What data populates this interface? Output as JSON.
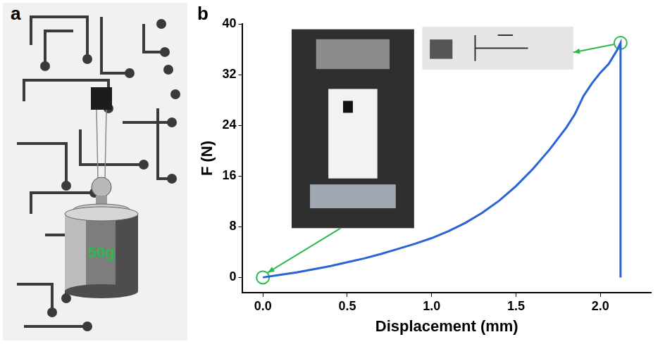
{
  "panel_a": {
    "letter": "a",
    "weight_label": "50g",
    "weight_label_color": "#2db84d"
  },
  "chart_data": {
    "letter": "b",
    "type": "line",
    "x_label": "Displacement (mm)",
    "y_label": "F (N)",
    "x": [
      0,
      0.1,
      0.2,
      0.3,
      0.4,
      0.5,
      0.6,
      0.7,
      0.8,
      0.9,
      1.0,
      1.1,
      1.2,
      1.3,
      1.4,
      1.5,
      1.6,
      1.7,
      1.8,
      1.85,
      1.9,
      1.95,
      2.0,
      2.05,
      2.1,
      2.12,
      2.12
    ],
    "series": [
      {
        "name": "F",
        "color": "#2a63d6",
        "values": [
          0,
          0.4,
          0.8,
          1.3,
          1.8,
          2.4,
          3.0,
          3.7,
          4.5,
          5.3,
          6.2,
          7.3,
          8.6,
          10.2,
          12.1,
          14.4,
          17.1,
          20.2,
          23.7,
          25.8,
          28.6,
          30.6,
          32.3,
          33.7,
          35.9,
          37,
          0
        ],
        "line_style": "solid",
        "marker": "none"
      }
    ],
    "highlight_points": {
      "x": [
        0,
        2.12
      ],
      "y": [
        0,
        37
      ],
      "color": "#2db84d",
      "marker": "circle"
    },
    "xlim": [
      -0.12,
      2.3
    ],
    "xticks": [
      {
        "value": 0,
        "label": "0.0"
      },
      {
        "value": 0.5,
        "label": "0.5"
      },
      {
        "value": 1,
        "label": "1.0"
      },
      {
        "value": 1.5,
        "label": "1.5"
      },
      {
        "value": 2,
        "label": "2.0"
      }
    ],
    "ylim": [
      -2.4,
      40
    ],
    "yticks": [
      0,
      8,
      16,
      24,
      32,
      40
    ],
    "grid": false
  }
}
